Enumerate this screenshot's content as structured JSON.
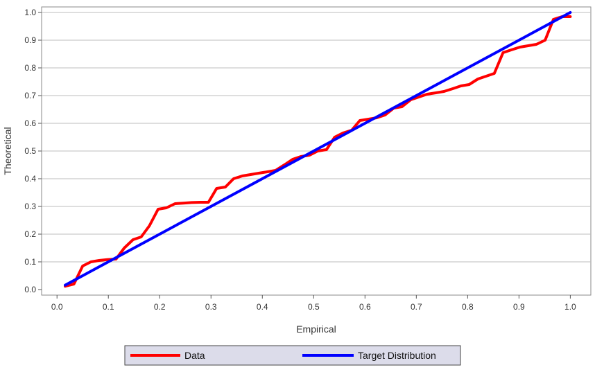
{
  "chart_data": {
    "type": "line",
    "xlabel": "Empirical",
    "ylabel": "Theoretical",
    "xlim": [
      -0.03,
      1.04
    ],
    "ylim": [
      -0.02,
      1.02
    ],
    "x_ticks": [
      "0.0",
      "0.1",
      "0.2",
      "0.3",
      "0.4",
      "0.5",
      "0.6",
      "0.7",
      "0.8",
      "0.9",
      "1.0"
    ],
    "y_ticks": [
      "0.0",
      "0.1",
      "0.2",
      "0.3",
      "0.4",
      "0.5",
      "0.6",
      "0.7",
      "0.8",
      "0.9",
      "1.0"
    ],
    "grid": "horizontal",
    "legend_position": "bottom",
    "series": [
      {
        "name": "Data",
        "color": "#ff0000",
        "x": [
          0.016,
          0.033,
          0.05,
          0.066,
          0.082,
          0.098,
          0.115,
          0.131,
          0.148,
          0.164,
          0.18,
          0.197,
          0.213,
          0.23,
          0.246,
          0.262,
          0.279,
          0.295,
          0.311,
          0.328,
          0.344,
          0.361,
          0.377,
          0.393,
          0.41,
          0.426,
          0.443,
          0.459,
          0.475,
          0.492,
          0.508,
          0.525,
          0.541,
          0.557,
          0.574,
          0.59,
          0.607,
          0.623,
          0.639,
          0.656,
          0.672,
          0.689,
          0.705,
          0.721,
          0.738,
          0.754,
          0.771,
          0.787,
          0.803,
          0.82,
          0.836,
          0.852,
          0.869,
          0.885,
          0.902,
          0.918,
          0.934,
          0.951,
          0.967,
          0.984,
          1.0
        ],
        "y": [
          0.012,
          0.02,
          0.085,
          0.1,
          0.105,
          0.108,
          0.11,
          0.15,
          0.18,
          0.19,
          0.23,
          0.29,
          0.295,
          0.31,
          0.312,
          0.314,
          0.315,
          0.315,
          0.365,
          0.37,
          0.4,
          0.41,
          0.415,
          0.42,
          0.425,
          0.43,
          0.45,
          0.47,
          0.48,
          0.485,
          0.5,
          0.505,
          0.55,
          0.565,
          0.575,
          0.61,
          0.615,
          0.62,
          0.63,
          0.655,
          0.66,
          0.685,
          0.695,
          0.705,
          0.71,
          0.715,
          0.725,
          0.735,
          0.74,
          0.76,
          0.77,
          0.78,
          0.855,
          0.865,
          0.875,
          0.88,
          0.885,
          0.9,
          0.975,
          0.985,
          0.985
        ]
      },
      {
        "name": "Target Distribution",
        "color": "#0000ff",
        "x": [
          0.016,
          1.0
        ],
        "y": [
          0.016,
          1.0
        ]
      }
    ]
  }
}
